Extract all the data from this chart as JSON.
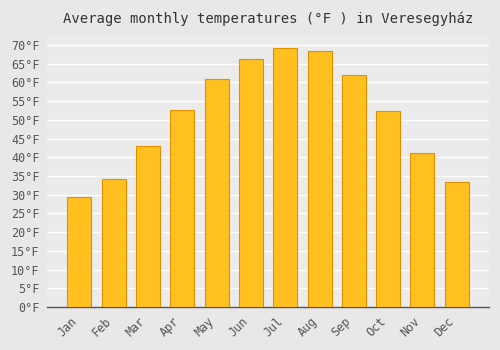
{
  "title": "Average monthly temperatures (°F ) in Veresegyház",
  "months": [
    "Jan",
    "Feb",
    "Mar",
    "Apr",
    "May",
    "Jun",
    "Jul",
    "Aug",
    "Sep",
    "Oct",
    "Nov",
    "Dec"
  ],
  "values": [
    29.3,
    34.3,
    43.0,
    52.5,
    60.8,
    66.2,
    69.3,
    68.5,
    62.1,
    52.3,
    41.0,
    33.3
  ],
  "bar_color": "#FFC020",
  "bar_edge_color": "#E09000",
  "ylim": [
    0,
    73
  ],
  "yticks": [
    0,
    5,
    10,
    15,
    20,
    25,
    30,
    35,
    40,
    45,
    50,
    55,
    60,
    65,
    70
  ],
  "background_color": "#E8E8E8",
  "plot_bg_color": "#EBEBEB",
  "grid_color": "#FFFFFF",
  "title_fontsize": 10,
  "tick_fontsize": 8.5,
  "bar_width": 0.7,
  "title_color": "#333333",
  "tick_color": "#555555",
  "spine_color": "#555555"
}
